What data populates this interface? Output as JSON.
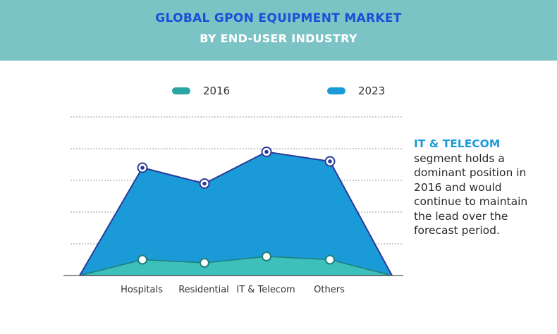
{
  "header": {
    "title_line1": "GLOBAL GPON EQUIPMENT MARKET",
    "title_line2": "BY END-USER INDUSTRY"
  },
  "colors": {
    "header_bg": "#7cc3c6",
    "series_2016": "#3dbfbc",
    "series_2023": "#1b9ad8",
    "outline_2023": "#2a3a9a",
    "outline_2016": "#1e7f7a"
  },
  "chart_data": {
    "type": "area",
    "categories": [
      "Hospitals",
      "Residential",
      "IT & Telecom",
      "Others"
    ],
    "series": [
      {
        "name": "2016",
        "values": [
          0.5,
          0.4,
          0.6,
          0.5
        ]
      },
      {
        "name": "2023",
        "values": [
          3.4,
          2.9,
          3.9,
          3.6
        ]
      }
    ],
    "ylim": [
      0,
      5
    ],
    "grid": true,
    "legend": "top"
  },
  "callout": {
    "highlight": "IT & TELECOM",
    "lines": [
      "segment holds a",
      "dominant position in",
      "2016 and would",
      "continue to maintain",
      "the lead over the",
      "forecast period."
    ]
  }
}
